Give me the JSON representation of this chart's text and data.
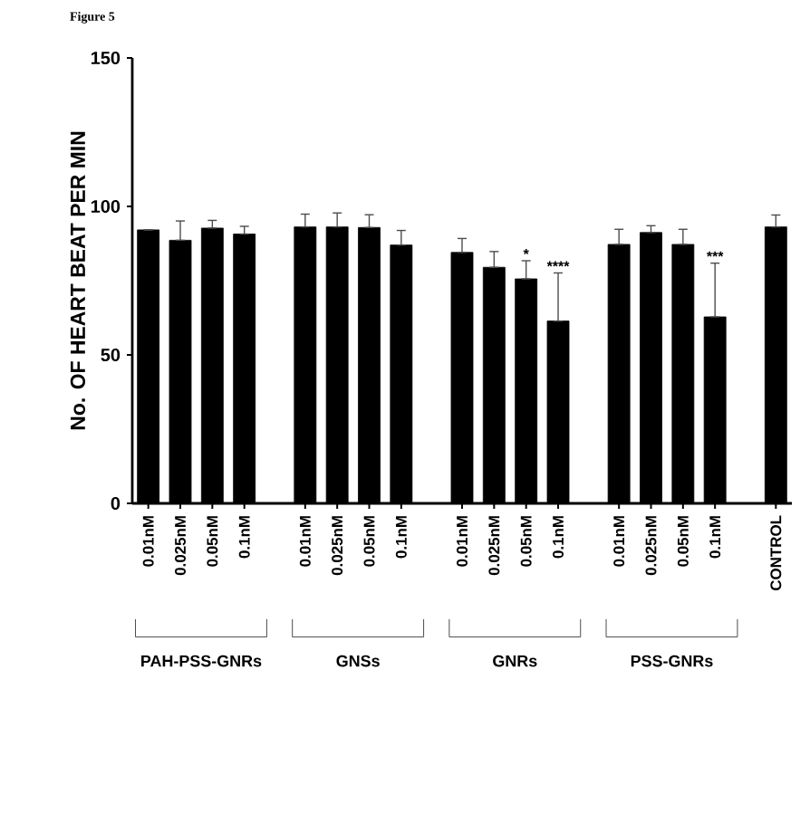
{
  "chart_data": {
    "type": "bar",
    "title": "Figure 5",
    "ylabel": "No. OF HEART BEAT PER MIN",
    "categories": [
      "0.01nM",
      "0.025nM",
      "0.05nM",
      "0.1nM",
      "0.01nM",
      "0.025nM",
      "0.05nM",
      "0.1nM",
      "0.01nM",
      "0.025nM",
      "0.05nM",
      "0.1nM",
      "0.01nM",
      "0.025nM",
      "0.05nM",
      "0.1nM",
      "CONTROL"
    ],
    "values": [
      92.1,
      88.6,
      92.7,
      90.7,
      93.1,
      93.1,
      92.9,
      87.0,
      84.5,
      79.5,
      75.6,
      61.4,
      87.2,
      91.2,
      87.2,
      62.8,
      93.1
    ],
    "errors": [
      null,
      [
        88.6,
        95.1
      ],
      [
        92.7,
        95.3
      ],
      [
        90.7,
        93.3
      ],
      [
        93.1,
        97.4
      ],
      [
        93.1,
        97.8
      ],
      [
        92.9,
        97.2
      ],
      [
        87.0,
        91.9
      ],
      [
        84.5,
        89.2
      ],
      [
        79.5,
        84.8
      ],
      [
        75.6,
        81.7
      ],
      [
        61.4,
        77.6
      ],
      [
        87.2,
        92.3
      ],
      [
        91.2,
        93.5
      ],
      [
        87.2,
        92.3
      ],
      [
        62.8,
        80.9
      ],
      [
        93.1,
        97.1
      ]
    ],
    "color": "#000000",
    "ylim": [
      0,
      150
    ],
    "yticks": [
      0,
      50,
      100,
      150
    ],
    "annotations": [
      "*",
      "****",
      "***",
      "PAH-PSS-GNRs",
      "GNSs",
      "GNRs",
      "PSS-GNRs"
    ]
  }
}
